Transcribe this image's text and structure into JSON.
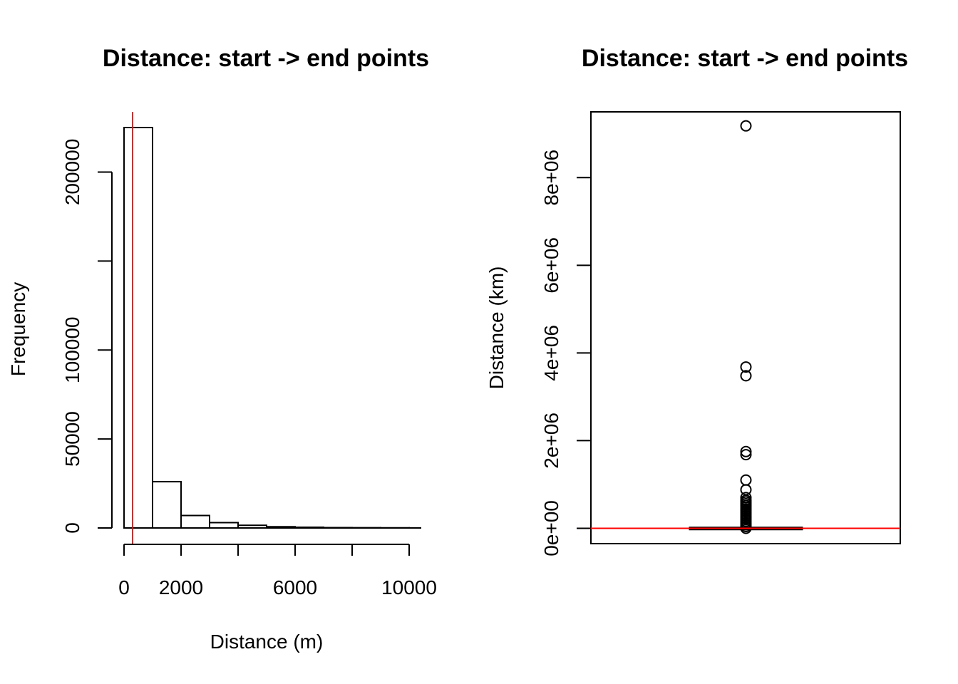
{
  "chart_data": [
    {
      "type": "bar",
      "subtype": "histogram",
      "title": "Distance: start -> end points",
      "xlabel": "Distance (m)",
      "ylabel": "Frequency",
      "bins": [
        {
          "x0": 0,
          "x1": 1000,
          "count": 225000
        },
        {
          "x0": 1000,
          "x1": 2000,
          "count": 26000
        },
        {
          "x0": 2000,
          "x1": 3000,
          "count": 7000
        },
        {
          "x0": 3000,
          "x1": 4000,
          "count": 3000
        },
        {
          "x0": 4000,
          "x1": 5000,
          "count": 1500
        },
        {
          "x0": 5000,
          "x1": 6000,
          "count": 700
        },
        {
          "x0": 6000,
          "x1": 7000,
          "count": 400
        },
        {
          "x0": 7000,
          "x1": 8000,
          "count": 200
        },
        {
          "x0": 8000,
          "x1": 9000,
          "count": 150
        },
        {
          "x0": 9000,
          "x1": 10000,
          "count": 100
        },
        {
          "x0": 10000,
          "x1": 10400,
          "count": 50
        }
      ],
      "xticks": [
        0,
        2000,
        4000,
        6000,
        8000,
        10000
      ],
      "xtick_labels": [
        "0",
        "2000",
        "6000",
        "10000"
      ],
      "xtick_label_values": [
        0,
        2000,
        6000,
        10000
      ],
      "yticks": [
        0,
        50000,
        100000,
        150000,
        200000
      ],
      "ytick_labels": [
        "0",
        "50000",
        "100000",
        "200000"
      ],
      "ytick_label_values": [
        0,
        50000,
        100000,
        200000
      ],
      "xlim": [
        0,
        10400
      ],
      "ylim": [
        0,
        225000
      ],
      "reference_line": {
        "orientation": "vertical",
        "x": 300,
        "color": "#ff0000"
      },
      "grid": false
    },
    {
      "type": "boxplot",
      "title": "Distance: start -> end points",
      "ylabel": "Distance (km)",
      "box": {
        "q1": 0,
        "median": 0,
        "q3": 20000,
        "whisker_low": 0,
        "whisker_high": 60000
      },
      "outliers": [
        9180000,
        3680000,
        3480000,
        1750000,
        1680000,
        1100000,
        880000,
        700000,
        640000,
        600000,
        560000,
        520000,
        480000,
        440000,
        400000,
        360000,
        320000,
        280000,
        240000,
        200000,
        160000,
        120000,
        80000,
        40000,
        0
      ],
      "yticks": [
        0,
        2000000,
        4000000,
        6000000,
        8000000
      ],
      "ytick_labels": [
        "0e+00",
        "2e+06",
        "4e+06",
        "6e+06",
        "8e+06"
      ],
      "ylim": [
        -350000,
        9500000
      ],
      "reference_line": {
        "orientation": "horizontal",
        "y": 0,
        "color": "#ff0000"
      },
      "grid": false
    }
  ]
}
